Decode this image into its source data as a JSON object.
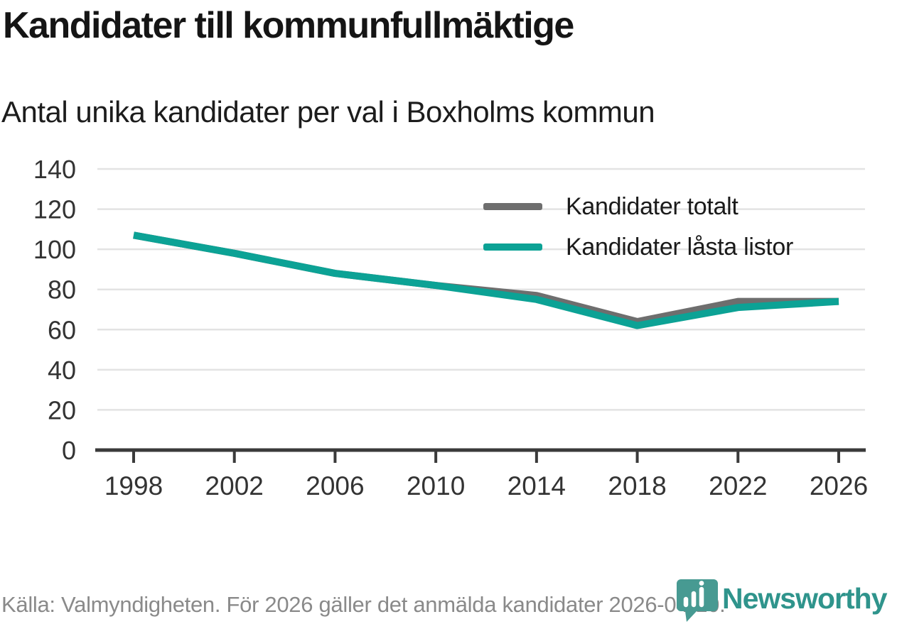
{
  "header": {
    "title": "Kandidater till kommunfullmäktige",
    "subtitle": "Antal unika kandidater per val i Boxholms kommun"
  },
  "chart_data": {
    "type": "line",
    "categories": [
      "1998",
      "2002",
      "2006",
      "2010",
      "2014",
      "2018",
      "2022",
      "2026"
    ],
    "series": [
      {
        "name": "Kandidater totalt",
        "color": "#6e6e6e",
        "values": [
          107,
          98,
          88,
          82,
          77,
          64,
          74,
          74
        ]
      },
      {
        "name": "Kandidater låsta listor",
        "color": "#0ca295",
        "values": [
          107,
          98,
          88,
          82,
          75,
          62,
          71,
          74
        ]
      }
    ],
    "xlabel": "",
    "ylabel": "",
    "ylim": [
      0,
      140
    ],
    "yticks": [
      0,
      20,
      40,
      60,
      80,
      100,
      120,
      140
    ],
    "grid": "horizontal",
    "legend_position": "inside-top-right"
  },
  "footer": {
    "source": "Källa: Valmyndigheten. För 2026 gäller det anmälda kandidater 2026-04-10."
  },
  "logo": {
    "wordmark": "Newsworthy",
    "icon": "newsworthy-pin-barchart-icon"
  },
  "colors": {
    "axis": "#3a3a3a",
    "grid": "#e3e3e3",
    "tick_label": "#333333",
    "logo_pin": "#479a92",
    "logo_text": "#2f948c"
  }
}
